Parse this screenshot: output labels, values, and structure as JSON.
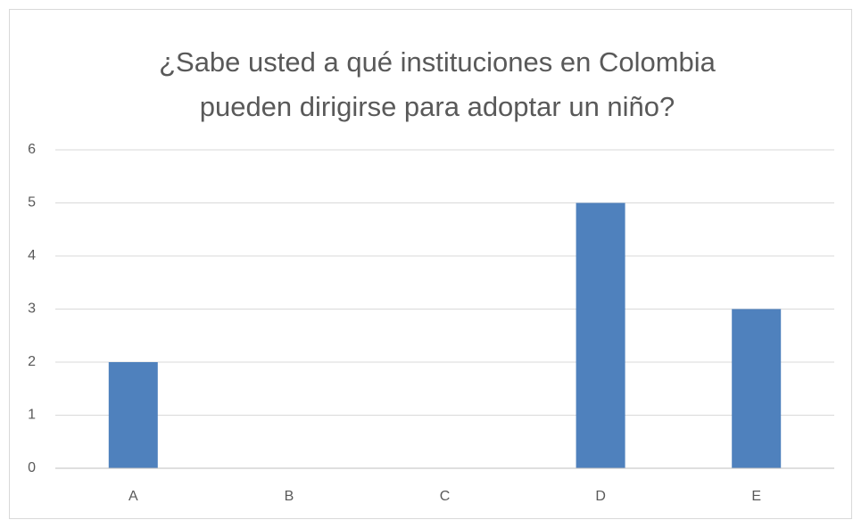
{
  "chart_data": {
    "type": "bar",
    "title": [
      "¿Sabe usted a qué instituciones en Colombia",
      "pueden dirigirse para adoptar un niño?"
    ],
    "categories": [
      "A",
      "B",
      "C",
      "D",
      "E"
    ],
    "values": [
      2,
      0,
      0,
      5,
      3
    ],
    "color": "#4f81bd",
    "ylim": [
      0,
      6
    ],
    "yticks": [
      0,
      1,
      2,
      3,
      4,
      5,
      6
    ],
    "grid": true
  }
}
